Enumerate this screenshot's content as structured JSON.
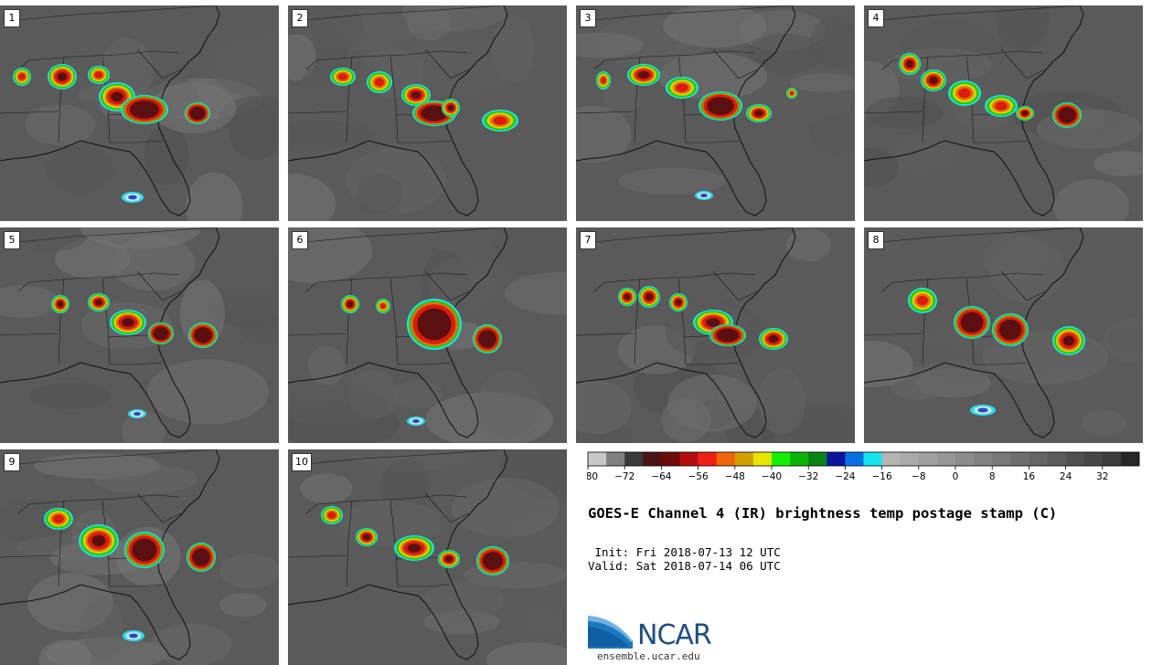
{
  "chart_data": {
    "type": "heatmap",
    "title": "GOES-E Channel 4 (IR) brightness temp postage stamp (C)",
    "init_label": "Init:",
    "init_value": "Fri 2018-07-13 12 UTC",
    "valid_label": "Valid:",
    "valid_value": "Sat 2018-07-14 06 UTC",
    "members": [
      "1",
      "2",
      "3",
      "4",
      "5",
      "6",
      "7",
      "8",
      "9",
      "10"
    ],
    "colorbar": {
      "range": [
        -80,
        40
      ],
      "tick_labels": [
        "−80",
        "−72",
        "−64",
        "−56",
        "−48",
        "−40",
        "−32",
        "−24",
        "−16",
        "−8",
        "0",
        "8",
        "16",
        "24",
        "32"
      ],
      "bins": [
        {
          "from": -80,
          "to": -76,
          "color": "#c8c8c8"
        },
        {
          "from": -76,
          "to": -72,
          "color": "#808080"
        },
        {
          "from": -72,
          "to": -68,
          "color": "#3a3a3a"
        },
        {
          "from": -68,
          "to": -64,
          "color": "#4a1414"
        },
        {
          "from": -64,
          "to": -60,
          "color": "#6e0a0a"
        },
        {
          "from": -60,
          "to": -56,
          "color": "#b40e0e"
        },
        {
          "from": -56,
          "to": -52,
          "color": "#f01e14"
        },
        {
          "from": -52,
          "to": -48,
          "color": "#f0640a"
        },
        {
          "from": -48,
          "to": -44,
          "color": "#d2a000"
        },
        {
          "from": -44,
          "to": -40,
          "color": "#e6e600"
        },
        {
          "from": -40,
          "to": -36,
          "color": "#14f000"
        },
        {
          "from": -36,
          "to": -32,
          "color": "#0ab400"
        },
        {
          "from": -32,
          "to": -28,
          "color": "#0a8214"
        },
        {
          "from": -28,
          "to": -24,
          "color": "#0a14a0"
        },
        {
          "from": -24,
          "to": -20,
          "color": "#0a6ee6"
        },
        {
          "from": -20,
          "to": -16,
          "color": "#14e6f0"
        },
        {
          "from": -16,
          "to": -12,
          "color": "#b4b4b4"
        },
        {
          "from": -12,
          "to": -8,
          "color": "#aaaaaa"
        },
        {
          "from": -8,
          "to": -4,
          "color": "#a0a0a0"
        },
        {
          "from": -4,
          "to": 0,
          "color": "#969696"
        },
        {
          "from": 0,
          "to": 4,
          "color": "#8c8c8c"
        },
        {
          "from": 4,
          "to": 8,
          "color": "#828282"
        },
        {
          "from": 8,
          "to": 12,
          "color": "#787878"
        },
        {
          "from": 12,
          "to": 16,
          "color": "#6e6e6e"
        },
        {
          "from": 16,
          "to": 20,
          "color": "#646464"
        },
        {
          "from": 20,
          "to": 24,
          "color": "#5a5a5a"
        },
        {
          "from": 24,
          "to": 28,
          "color": "#505050"
        },
        {
          "from": 28,
          "to": 32,
          "color": "#464646"
        },
        {
          "from": 32,
          "to": 36,
          "color": "#3c3c3c"
        },
        {
          "from": 36,
          "to": 40,
          "color": "#262626"
        }
      ]
    }
  },
  "logo": {
    "name": "NCAR",
    "url": "ensemble.ucar.edu"
  },
  "colors": {
    "background_gray": "#5a5a5a",
    "cloud_core": "#5a1010",
    "cloud_red": "#d81c10",
    "cloud_orange": "#f06a0a",
    "cloud_yellow": "#e0d000",
    "cloud_green": "#18d000",
    "cloud_blue": "#1050c8",
    "cloud_cyan": "#20e0f0",
    "logo_blue": "#1e4f83"
  }
}
